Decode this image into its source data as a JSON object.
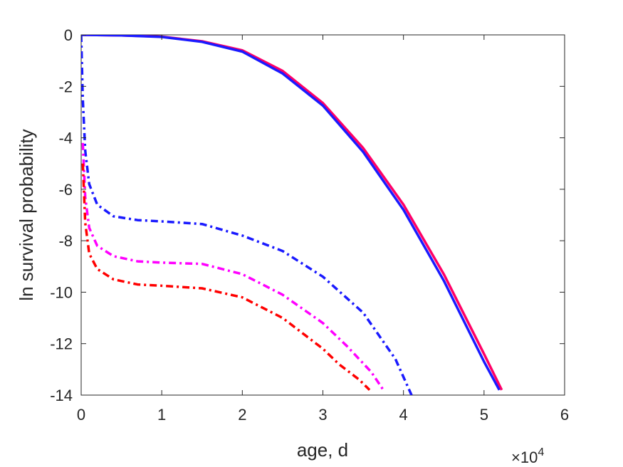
{
  "chart_data": {
    "type": "line",
    "title": "",
    "xlabel": "age, d",
    "ylabel": "ln survival probability",
    "x_multiplier": {
      "base": "×10",
      "exponent": "4"
    },
    "xlim": [
      0,
      6
    ],
    "ylim": [
      -14,
      0
    ],
    "x_ticks": [
      "0",
      "1",
      "2",
      "3",
      "4",
      "5",
      "6"
    ],
    "y_ticks": [
      "0",
      "-2",
      "-4",
      "-6",
      "-8",
      "-10",
      "-12",
      "-14"
    ],
    "grid": false,
    "series": [
      {
        "color": "#ff0066",
        "style": "solid",
        "x": [
          0,
          0.5,
          1,
          1.5,
          2,
          2.5,
          3,
          3.5,
          4,
          4.5,
          5,
          5.22
        ],
        "y": [
          0,
          -0.02,
          -0.07,
          -0.25,
          -0.6,
          -1.4,
          -2.65,
          -4.4,
          -6.6,
          -9.3,
          -12.4,
          -13.8
        ]
      },
      {
        "color": "#1a1aff",
        "style": "solid",
        "x": [
          0,
          0.5,
          1,
          1.5,
          2,
          2.5,
          3,
          3.5,
          4,
          4.5,
          5,
          5.19
        ],
        "y": [
          0,
          -0.02,
          -0.08,
          -0.27,
          -0.65,
          -1.5,
          -2.75,
          -4.55,
          -6.8,
          -9.55,
          -12.7,
          -13.8
        ]
      },
      {
        "color": "#1a1aff",
        "style": "dashdot",
        "x": [
          0,
          0.02,
          0.05,
          0.1,
          0.2,
          0.4,
          0.7,
          1.0,
          1.5,
          2.0,
          2.5,
          3.0,
          3.5,
          3.9,
          4.1
        ],
        "y": [
          0,
          -2.5,
          -4.5,
          -5.8,
          -6.6,
          -7.05,
          -7.2,
          -7.25,
          -7.35,
          -7.8,
          -8.4,
          -9.4,
          -10.8,
          -12.6,
          -14
        ]
      },
      {
        "color": "#ff00ff",
        "style": "dashdot",
        "x": [
          0.02,
          0.05,
          0.1,
          0.2,
          0.4,
          0.7,
          1.0,
          1.5,
          2.0,
          2.5,
          3.0,
          3.3,
          3.6,
          3.75
        ],
        "y": [
          -4.2,
          -6.3,
          -7.5,
          -8.2,
          -8.6,
          -8.8,
          -8.85,
          -8.9,
          -9.3,
          -10.1,
          -11.2,
          -12.1,
          -13.1,
          -13.8
        ]
      },
      {
        "color": "#ff0000",
        "style": "dashdot",
        "x": [
          0.02,
          0.05,
          0.1,
          0.2,
          0.4,
          0.7,
          1.0,
          1.5,
          2.0,
          2.5,
          3.0,
          3.2,
          3.45,
          3.58
        ],
        "y": [
          -5.0,
          -7.3,
          -8.5,
          -9.1,
          -9.5,
          -9.7,
          -9.75,
          -9.85,
          -10.2,
          -11.0,
          -12.2,
          -12.8,
          -13.4,
          -13.8
        ]
      }
    ]
  }
}
